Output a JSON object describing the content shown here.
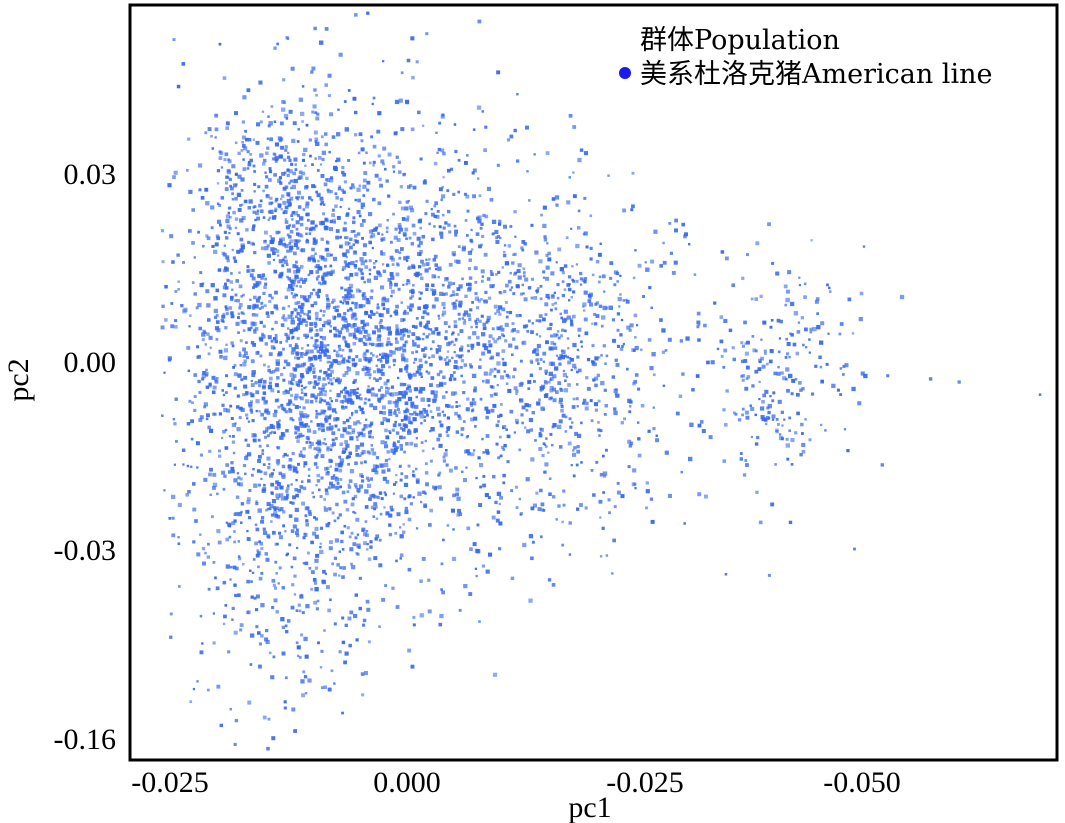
{
  "chart_data": {
    "type": "scatter",
    "xlabel": "pc1",
    "ylabel": "pc2",
    "xticks": [
      "-0.025",
      "0.000",
      "-0.025",
      "-0.050"
    ],
    "yticks": [
      "0.03",
      "0.00",
      "-0.03",
      "-0.16"
    ],
    "legend_title": "群体Population",
    "legend_placement": "top-right",
    "grid": false,
    "series": [
      {
        "name": "美系杜洛克猪American line",
        "color": "#3366ee",
        "legend_marker_color": "#1a1aee",
        "point_count": 4200,
        "clusters": [
          {
            "cx": -0.0085,
            "cy": 0.004,
            "sx": 0.0085,
            "sy": 0.018,
            "weight": 0.46
          },
          {
            "cx": 0.005,
            "cy": 0.001,
            "sx": 0.011,
            "sy": 0.015,
            "weight": 0.26
          },
          {
            "cx": 0.016,
            "cy": 0.0,
            "sx": 0.007,
            "sy": 0.013,
            "weight": 0.08
          },
          {
            "cx": -0.013,
            "cy": -0.026,
            "sx": 0.006,
            "sy": 0.016,
            "weight": 0.1
          },
          {
            "cx": -0.0145,
            "cy": 0.026,
            "sx": 0.004,
            "sy": 0.008,
            "weight": 0.05
          },
          {
            "cx": 0.0395,
            "cy": -0.003,
            "sx": 0.0035,
            "sy": 0.009,
            "weight": 0.05
          }
        ],
        "outliers": [
          [
            -0.0125,
            0.051
          ],
          [
            -0.0235,
            0.047
          ],
          [
            0.0,
            0.041
          ],
          [
            0.0665,
            -0.0055
          ],
          [
            0.058,
            -0.0035
          ],
          [
            0.0505,
            -0.0025
          ],
          [
            0.048,
            0.018
          ],
          [
            0.0335,
            -0.034
          ],
          [
            0.047,
            -0.03
          ],
          [
            -0.0215,
            -0.045
          ],
          [
            -0.0195,
            -0.058
          ],
          [
            -0.0145,
            -0.057
          ],
          [
            -0.0065,
            -0.048
          ],
          [
            0.0035,
            -0.042
          ],
          [
            -0.022,
            -0.051
          ],
          [
            0.0055,
            0.018
          ],
          [
            0.055,
            -0.003
          ],
          [
            0.046,
            -0.011
          ],
          [
            0.0425,
            0.019
          ],
          [
            0.052,
            0.01
          ]
        ]
      }
    ]
  }
}
